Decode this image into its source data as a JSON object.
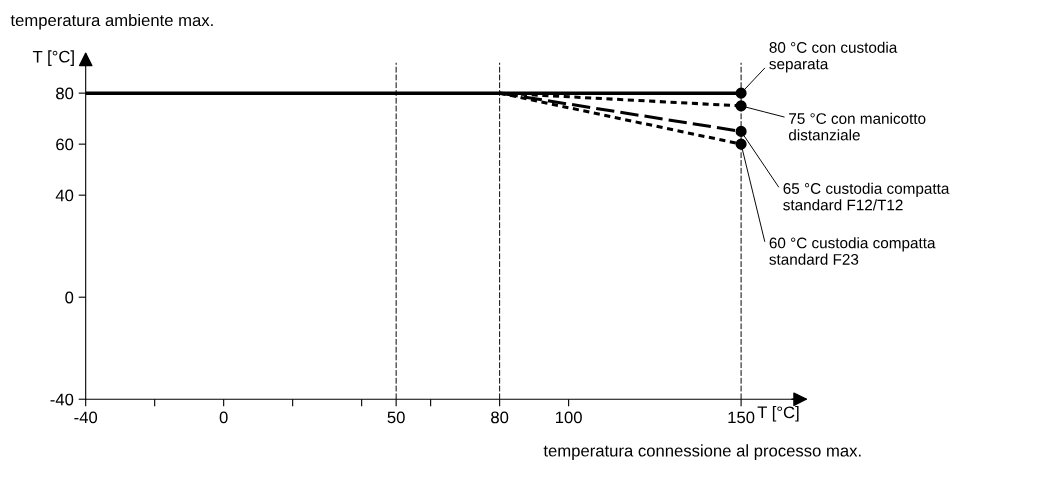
{
  "chart_data": {
    "type": "line",
    "xlabel": "T [°C]",
    "ylabel": "T [°C]",
    "annotations": [
      "temperatura ambiente max.",
      "temperatura connessione al processo max."
    ],
    "xlim": [
      -40,
      166
    ],
    "ylim": [
      -40,
      92
    ],
    "xticks": [
      -40,
      {
        "value": -20,
        "label": null
      },
      0,
      {
        "value": 20,
        "label": null
      },
      {
        "value": 40,
        "label": null
      },
      50,
      {
        "value": 60,
        "label": null
      },
      80,
      100,
      150
    ],
    "yticks": [
      -40,
      0,
      40,
      60,
      80
    ],
    "grid": false,
    "legend": false,
    "marker": "circle",
    "ref_lines": [
      {
        "axis": "x",
        "value": 50,
        "color": "#000000",
        "line_style": "dashed"
      },
      {
        "axis": "x",
        "value": 80,
        "color": "#000000",
        "line_style": "dashed"
      },
      {
        "axis": "x",
        "value": 150,
        "color": "#000000",
        "line_style": "dashed"
      }
    ],
    "series": [
      {
        "name": "80 °C con custodia\nseparata",
        "color": "#000000",
        "x": [
          -40,
          150
        ],
        "values": [
          80,
          80
        ],
        "line_style": "solid"
      },
      {
        "name": "75 °C con manicotto\ndistanziale",
        "color": "#000000",
        "x": [
          80,
          150
        ],
        "values": [
          80,
          75
        ],
        "line_style": "dotted"
      },
      {
        "name": "65 °C custodia compatta\nstandard F12/T12",
        "color": "#000000",
        "x": [
          80,
          150
        ],
        "values": [
          80,
          65
        ],
        "line_style": "dashed"
      },
      {
        "name": "60 °C custodia compatta\nstandard F23",
        "color": "#000000",
        "x": [
          80,
          150
        ],
        "values": [
          80,
          60
        ],
        "line_style": "dotted"
      }
    ]
  }
}
